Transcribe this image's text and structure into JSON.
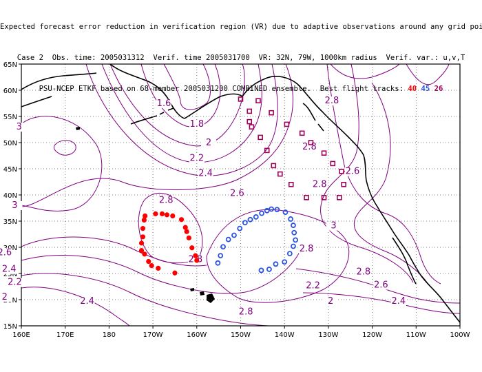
{
  "header": {
    "line1": "Expected forecast error reduction in verification region (VR) due to adaptive observations around any grid point.",
    "line2": "Case 2  Obs. time: 2005031312  Verif. time 2005031700  VR: 32N, 79W, 1000km radius  Verif. var.: u,v,T",
    "line3_prefix": "PSU-NCEP ETKF based on 68-member 2005031200 COMBINED ensemble.  Best flight tracks:",
    "track_red": "40",
    "track_blue": "45",
    "track_purple": "26"
  },
  "axes": {
    "lon_labels": [
      "160E",
      "170E",
      "180",
      "170W",
      "160W",
      "150W",
      "140W",
      "130W",
      "120W",
      "110W",
      "100W"
    ],
    "lat_labels": [
      "15N",
      "20N",
      "25N",
      "30N",
      "35N",
      "40N",
      "45N",
      "50N",
      "55N",
      "60N",
      "65N"
    ]
  },
  "contour_labels": [
    {
      "text": "1.6",
      "lon": -167.5,
      "lat": 57.0
    },
    {
      "text": "1.8",
      "lon": -160.0,
      "lat": 53.0
    },
    {
      "text": "2",
      "lon": -157.3,
      "lat": 49.5
    },
    {
      "text": "2.2",
      "lon": -160.0,
      "lat": 46.5
    },
    {
      "text": "2.4",
      "lon": -158.0,
      "lat": 43.6
    },
    {
      "text": "2.6",
      "lon": -150.8,
      "lat": 39.8
    },
    {
      "text": "2.8",
      "lon": -167.0,
      "lat": 38.5
    },
    {
      "text": "3",
      "lon": -200.5,
      "lat": 52.5
    },
    {
      "text": "3",
      "lon": -201.5,
      "lat": 37.5
    },
    {
      "text": "2.6",
      "lon": -203.8,
      "lat": 28.5
    },
    {
      "text": "2.4",
      "lon": -202.8,
      "lat": 25.3
    },
    {
      "text": "2.2",
      "lon": -201.5,
      "lat": 22.8
    },
    {
      "text": "2",
      "lon": -203.8,
      "lat": 20.0
    },
    {
      "text": "2.4",
      "lon": -185.0,
      "lat": 19.2
    },
    {
      "text": "2.8",
      "lon": -160.3,
      "lat": 27.2
    },
    {
      "text": "2.8",
      "lon": -148.8,
      "lat": 17.2
    },
    {
      "text": "2.8",
      "lon": -135.0,
      "lat": 29.2
    },
    {
      "text": "2.8",
      "lon": -129.2,
      "lat": 57.5
    },
    {
      "text": "2.8",
      "lon": -134.3,
      "lat": 48.7
    },
    {
      "text": "2.8",
      "lon": -132.0,
      "lat": 41.5
    },
    {
      "text": "2.6",
      "lon": -124.5,
      "lat": 44.0
    },
    {
      "text": "3",
      "lon": -128.8,
      "lat": 33.6
    },
    {
      "text": "2.8",
      "lon": -122.0,
      "lat": 24.8
    },
    {
      "text": "2.6",
      "lon": -118.0,
      "lat": 22.3
    },
    {
      "text": "2.4",
      "lon": -114.0,
      "lat": 19.2
    },
    {
      "text": "2.2",
      "lon": -133.5,
      "lat": 22.2
    },
    {
      "text": "2",
      "lon": -129.5,
      "lat": 19.2
    }
  ],
  "tracks": {
    "red": {
      "color": "#ff0000",
      "points": [
        [
          -171.8,
          36.0
        ],
        [
          -172.0,
          35.2
        ],
        [
          -172.3,
          33.6
        ],
        [
          -172.3,
          32.0
        ],
        [
          -172.6,
          30.8
        ],
        [
          -172.6,
          29.4
        ],
        [
          -171.9,
          28.7
        ],
        [
          -171.0,
          27.3
        ],
        [
          -170.3,
          26.5
        ],
        [
          -169.4,
          36.4
        ],
        [
          -168.8,
          26.0
        ],
        [
          -167.9,
          36.4
        ],
        [
          -166.8,
          36.2
        ],
        [
          -165.5,
          36.0
        ],
        [
          -165.0,
          25.1
        ],
        [
          -163.5,
          35.3
        ],
        [
          -162.6,
          33.8
        ],
        [
          -162.3,
          33.0
        ],
        [
          -161.8,
          31.8
        ],
        [
          -161.1,
          29.9
        ],
        [
          -160.0,
          27.5
        ],
        [
          -160.3,
          28.4
        ]
      ]
    },
    "blue": {
      "color": "#2a52e0",
      "points": [
        [
          -155.2,
          27.0
        ],
        [
          -154.6,
          28.4
        ],
        [
          -154.0,
          30.1
        ],
        [
          -152.8,
          31.5
        ],
        [
          -151.5,
          32.3
        ],
        [
          -150.2,
          33.6
        ],
        [
          -149.0,
          34.7
        ],
        [
          -147.8,
          35.3
        ],
        [
          -146.5,
          35.8
        ],
        [
          -145.2,
          36.5
        ],
        [
          -144.0,
          37.0
        ],
        [
          -143.0,
          37.3
        ],
        [
          -141.7,
          37.2
        ],
        [
          -139.8,
          36.7
        ],
        [
          -138.6,
          35.4
        ],
        [
          -138.0,
          34.2
        ],
        [
          -137.8,
          32.8
        ],
        [
          -137.5,
          31.4
        ],
        [
          -138.0,
          30.2
        ],
        [
          -138.8,
          28.8
        ],
        [
          -140.0,
          27.2
        ],
        [
          -142.0,
          26.8
        ],
        [
          -143.5,
          25.8
        ],
        [
          -145.3,
          25.6
        ]
      ]
    },
    "purple": {
      "color": "#a0005a",
      "points": [
        [
          -150.0,
          58.3
        ],
        [
          -148.0,
          56.0
        ],
        [
          -146.0,
          58.0
        ],
        [
          -143.0,
          55.7
        ],
        [
          -139.5,
          53.5
        ],
        [
          -136.0,
          51.8
        ],
        [
          -134.0,
          50.0
        ],
        [
          -131.0,
          48.0
        ],
        [
          -129.0,
          46.0
        ],
        [
          -127.0,
          44.5
        ],
        [
          -126.5,
          42.0
        ],
        [
          -127.5,
          39.5
        ],
        [
          -131.0,
          39.5
        ],
        [
          -135.0,
          39.5
        ],
        [
          -138.5,
          42.0
        ],
        [
          -141.0,
          44.0
        ],
        [
          -142.5,
          45.6
        ],
        [
          -144.0,
          48.5
        ],
        [
          -145.5,
          51.0
        ],
        [
          -147.5,
          53.0
        ],
        [
          -148.0,
          54.0
        ]
      ]
    }
  }
}
